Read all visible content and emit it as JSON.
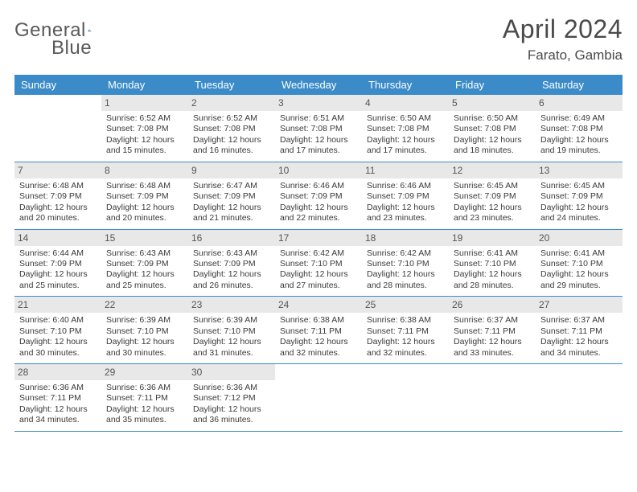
{
  "logo": {
    "word1": "General",
    "word2": "Blue"
  },
  "title": {
    "month": "April 2024",
    "location": "Farato, Gambia"
  },
  "colors": {
    "header_bg": "#3b8bc8",
    "header_fg": "#ffffff",
    "daynum_bg": "#e8e8e8",
    "week_border": "#3b8bc8",
    "logo_blue": "#2f6fa7",
    "logo_gray": "#5a5a5a",
    "text": "#3a3a3a"
  },
  "day_headers": [
    "Sunday",
    "Monday",
    "Tuesday",
    "Wednesday",
    "Thursday",
    "Friday",
    "Saturday"
  ],
  "weeks": [
    [
      {
        "n": "",
        "sr": "",
        "ss": "",
        "dl": ""
      },
      {
        "n": "1",
        "sr": "Sunrise: 6:52 AM",
        "ss": "Sunset: 7:08 PM",
        "dl": "Daylight: 12 hours and 15 minutes."
      },
      {
        "n": "2",
        "sr": "Sunrise: 6:52 AM",
        "ss": "Sunset: 7:08 PM",
        "dl": "Daylight: 12 hours and 16 minutes."
      },
      {
        "n": "3",
        "sr": "Sunrise: 6:51 AM",
        "ss": "Sunset: 7:08 PM",
        "dl": "Daylight: 12 hours and 17 minutes."
      },
      {
        "n": "4",
        "sr": "Sunrise: 6:50 AM",
        "ss": "Sunset: 7:08 PM",
        "dl": "Daylight: 12 hours and 17 minutes."
      },
      {
        "n": "5",
        "sr": "Sunrise: 6:50 AM",
        "ss": "Sunset: 7:08 PM",
        "dl": "Daylight: 12 hours and 18 minutes."
      },
      {
        "n": "6",
        "sr": "Sunrise: 6:49 AM",
        "ss": "Sunset: 7:08 PM",
        "dl": "Daylight: 12 hours and 19 minutes."
      }
    ],
    [
      {
        "n": "7",
        "sr": "Sunrise: 6:48 AM",
        "ss": "Sunset: 7:09 PM",
        "dl": "Daylight: 12 hours and 20 minutes."
      },
      {
        "n": "8",
        "sr": "Sunrise: 6:48 AM",
        "ss": "Sunset: 7:09 PM",
        "dl": "Daylight: 12 hours and 20 minutes."
      },
      {
        "n": "9",
        "sr": "Sunrise: 6:47 AM",
        "ss": "Sunset: 7:09 PM",
        "dl": "Daylight: 12 hours and 21 minutes."
      },
      {
        "n": "10",
        "sr": "Sunrise: 6:46 AM",
        "ss": "Sunset: 7:09 PM",
        "dl": "Daylight: 12 hours and 22 minutes."
      },
      {
        "n": "11",
        "sr": "Sunrise: 6:46 AM",
        "ss": "Sunset: 7:09 PM",
        "dl": "Daylight: 12 hours and 23 minutes."
      },
      {
        "n": "12",
        "sr": "Sunrise: 6:45 AM",
        "ss": "Sunset: 7:09 PM",
        "dl": "Daylight: 12 hours and 23 minutes."
      },
      {
        "n": "13",
        "sr": "Sunrise: 6:45 AM",
        "ss": "Sunset: 7:09 PM",
        "dl": "Daylight: 12 hours and 24 minutes."
      }
    ],
    [
      {
        "n": "14",
        "sr": "Sunrise: 6:44 AM",
        "ss": "Sunset: 7:09 PM",
        "dl": "Daylight: 12 hours and 25 minutes."
      },
      {
        "n": "15",
        "sr": "Sunrise: 6:43 AM",
        "ss": "Sunset: 7:09 PM",
        "dl": "Daylight: 12 hours and 25 minutes."
      },
      {
        "n": "16",
        "sr": "Sunrise: 6:43 AM",
        "ss": "Sunset: 7:09 PM",
        "dl": "Daylight: 12 hours and 26 minutes."
      },
      {
        "n": "17",
        "sr": "Sunrise: 6:42 AM",
        "ss": "Sunset: 7:10 PM",
        "dl": "Daylight: 12 hours and 27 minutes."
      },
      {
        "n": "18",
        "sr": "Sunrise: 6:42 AM",
        "ss": "Sunset: 7:10 PM",
        "dl": "Daylight: 12 hours and 28 minutes."
      },
      {
        "n": "19",
        "sr": "Sunrise: 6:41 AM",
        "ss": "Sunset: 7:10 PM",
        "dl": "Daylight: 12 hours and 28 minutes."
      },
      {
        "n": "20",
        "sr": "Sunrise: 6:41 AM",
        "ss": "Sunset: 7:10 PM",
        "dl": "Daylight: 12 hours and 29 minutes."
      }
    ],
    [
      {
        "n": "21",
        "sr": "Sunrise: 6:40 AM",
        "ss": "Sunset: 7:10 PM",
        "dl": "Daylight: 12 hours and 30 minutes."
      },
      {
        "n": "22",
        "sr": "Sunrise: 6:39 AM",
        "ss": "Sunset: 7:10 PM",
        "dl": "Daylight: 12 hours and 30 minutes."
      },
      {
        "n": "23",
        "sr": "Sunrise: 6:39 AM",
        "ss": "Sunset: 7:10 PM",
        "dl": "Daylight: 12 hours and 31 minutes."
      },
      {
        "n": "24",
        "sr": "Sunrise: 6:38 AM",
        "ss": "Sunset: 7:11 PM",
        "dl": "Daylight: 12 hours and 32 minutes."
      },
      {
        "n": "25",
        "sr": "Sunrise: 6:38 AM",
        "ss": "Sunset: 7:11 PM",
        "dl": "Daylight: 12 hours and 32 minutes."
      },
      {
        "n": "26",
        "sr": "Sunrise: 6:37 AM",
        "ss": "Sunset: 7:11 PM",
        "dl": "Daylight: 12 hours and 33 minutes."
      },
      {
        "n": "27",
        "sr": "Sunrise: 6:37 AM",
        "ss": "Sunset: 7:11 PM",
        "dl": "Daylight: 12 hours and 34 minutes."
      }
    ],
    [
      {
        "n": "28",
        "sr": "Sunrise: 6:36 AM",
        "ss": "Sunset: 7:11 PM",
        "dl": "Daylight: 12 hours and 34 minutes."
      },
      {
        "n": "29",
        "sr": "Sunrise: 6:36 AM",
        "ss": "Sunset: 7:11 PM",
        "dl": "Daylight: 12 hours and 35 minutes."
      },
      {
        "n": "30",
        "sr": "Sunrise: 6:36 AM",
        "ss": "Sunset: 7:12 PM",
        "dl": "Daylight: 12 hours and 36 minutes."
      },
      {
        "n": "",
        "sr": "",
        "ss": "",
        "dl": ""
      },
      {
        "n": "",
        "sr": "",
        "ss": "",
        "dl": ""
      },
      {
        "n": "",
        "sr": "",
        "ss": "",
        "dl": ""
      },
      {
        "n": "",
        "sr": "",
        "ss": "",
        "dl": ""
      }
    ]
  ]
}
